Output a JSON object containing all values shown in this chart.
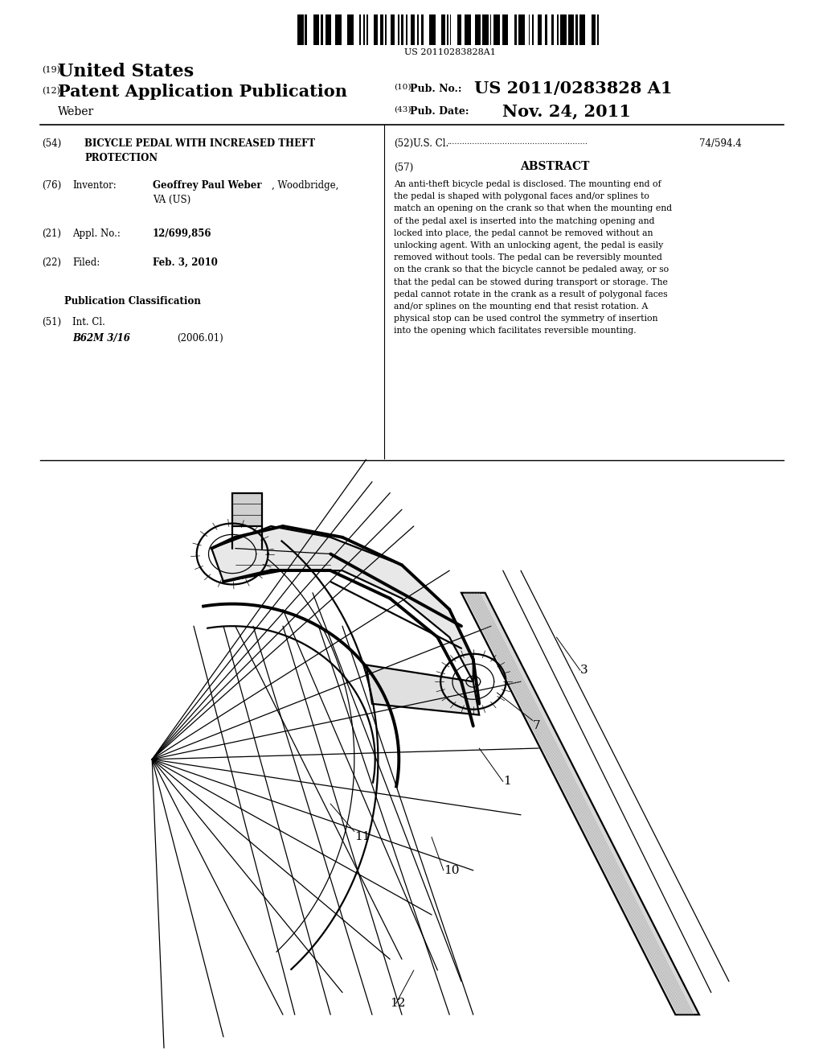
{
  "background_color": "#ffffff",
  "barcode_text": "US 20110283828A1",
  "header": {
    "number_19": "(19)",
    "united_states": "United States",
    "number_12": "(12)",
    "patent_app_pub": "Patent Application Publication",
    "number_10": "(10)",
    "pub_no_label": "Pub. No.:",
    "pub_no_value": "US 2011/0283828 A1",
    "inventor_name": "Weber",
    "number_43": "(43)",
    "pub_date_label": "Pub. Date:",
    "pub_date_value": "Nov. 24, 2011"
  },
  "left_column": {
    "section_54_num": "(54)",
    "section_54_line1": "BICYCLE PEDAL WITH INCREASED THEFT",
    "section_54_line2": "PROTECTION",
    "section_76_num": "(76)",
    "section_76_label": "Inventor:",
    "section_76_name": "Geoffrey Paul Weber",
    "section_76_city": ", Woodbridge,",
    "section_76_state": "VA (US)",
    "section_21_num": "(21)",
    "section_21_label": "Appl. No.:",
    "section_21_value": "12/699,856",
    "section_22_num": "(22)",
    "section_22_label": "Filed:",
    "section_22_value": "Feb. 3, 2010",
    "pub_class_header": "Publication Classification",
    "section_51_num": "(51)",
    "section_51_label": "Int. Cl.",
    "section_51_value": "B62M 3/16",
    "section_51_year": "(2006.01)"
  },
  "right_column": {
    "section_52_num": "(52)",
    "section_52_label": "U.S. Cl.",
    "section_52_dots": "........................................................",
    "section_52_value": "74/594.4",
    "section_57_num": "(57)",
    "abstract_title": "ABSTRACT",
    "abstract_lines": [
      "An anti-theft bicycle pedal is disclosed. The mounting end of",
      "the pedal is shaped with polygonal faces and/or splines to",
      "match an opening on the crank so that when the mounting end",
      "of the pedal axel is inserted into the matching opening and",
      "locked into place, the pedal cannot be removed without an",
      "unlocking agent. With an unlocking agent, the pedal is easily",
      "removed without tools. The pedal can be reversibly mounted",
      "on the crank so that the bicycle cannot be pedaled away, or so",
      "that the pedal can be stowed during transport or storage. The",
      "pedal cannot rotate in the crank as a result of polygonal faces",
      "and/or splines on the mounting end that resist rotation. A",
      "physical stop can be used control the symmetry of insertion",
      "into the opening which facilitates reversible mounting."
    ]
  }
}
